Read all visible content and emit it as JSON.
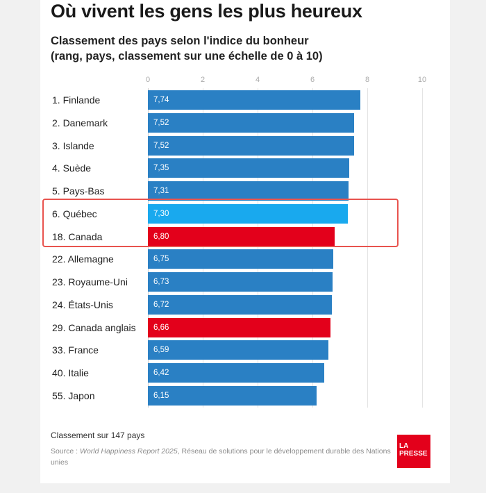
{
  "title": "Où vivent les gens les plus heureux",
  "subtitle_line1": "Classement des pays selon l'indice du bonheur",
  "subtitle_line2": "(rang, pays, classement sur une échelle de 0 à 10)",
  "footnote": "Classement sur 147 pays",
  "source": {
    "prefix": "Source : ",
    "report": "World Happiness Report 2025",
    "rest": ", Réseau de solutions pour le développement durable des Nations unies"
  },
  "logo": {
    "line1": "LA",
    "line2": "PRESSE"
  },
  "colors": {
    "default": "#2a80c4",
    "quebec": "#19a9ee",
    "canada": "#e3001b",
    "highlight_box": "#e8534e"
  },
  "chart_data": {
    "type": "bar",
    "orientation": "horizontal",
    "title": "Où vivent les gens les plus heureux",
    "xlim": [
      0,
      10
    ],
    "ticks": [
      0,
      2,
      4,
      6,
      8,
      10
    ],
    "grid": true,
    "categories": [
      "1. Finlande",
      "2. Danemark",
      "3. Islande",
      "4. Suède",
      "5. Pays-Bas",
      "6. Québec",
      "18. Canada",
      "22. Allemagne",
      "23. Royaume-Uni",
      "24. États-Unis",
      "29. Canada anglais",
      "33. France",
      "40. Italie",
      "55. Japon"
    ],
    "values": [
      7.74,
      7.52,
      7.52,
      7.35,
      7.31,
      7.3,
      6.8,
      6.75,
      6.73,
      6.72,
      6.66,
      6.59,
      6.42,
      6.15
    ],
    "value_labels": [
      "7,74",
      "7,52",
      "7,52",
      "7,35",
      "7,31",
      "7,30",
      "6,80",
      "6,75",
      "6,73",
      "6,72",
      "6,66",
      "6,59",
      "6,42",
      "6,15"
    ],
    "bar_colors": [
      "default",
      "default",
      "default",
      "default",
      "default",
      "quebec",
      "canada",
      "default",
      "default",
      "default",
      "canada",
      "default",
      "default",
      "default"
    ],
    "highlighted": [
      "6. Québec",
      "18. Canada"
    ]
  }
}
